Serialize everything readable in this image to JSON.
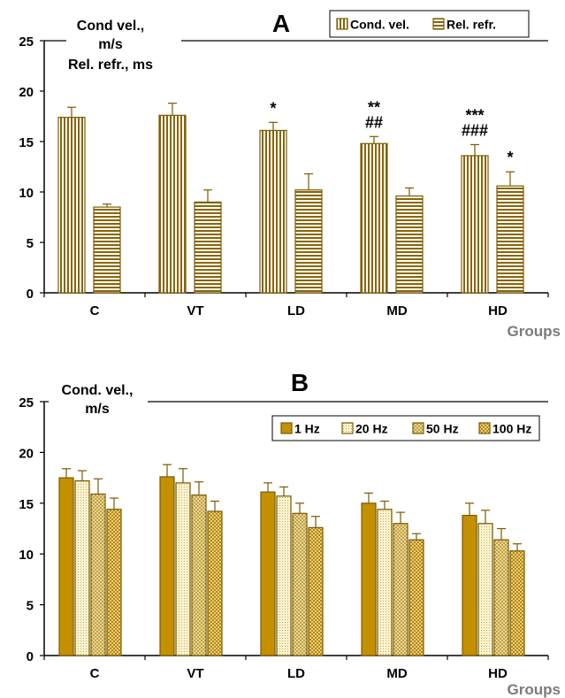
{
  "colors": {
    "outline": "#7a5a00",
    "gold": "#c49000",
    "light": "#f3e6b0",
    "mid": "#d8bd6a",
    "axis": "#000000",
    "groups_label": "#7a7a7a"
  },
  "chart_data": [
    {
      "id": "A",
      "type": "bar",
      "panel_label": "A",
      "title_lines": [
        "Cond vel.,",
        "m/s",
        "Rel. refr., ms"
      ],
      "xlabel": "Groups",
      "ylim": [
        0,
        25
      ],
      "yticks": [
        0,
        5,
        10,
        15,
        20,
        25
      ],
      "categories": [
        "C",
        "VT",
        "LD",
        "MD",
        "HD"
      ],
      "legend": {
        "position": "top-right"
      },
      "series": [
        {
          "name": "Cond. vel.",
          "pattern": "vlines",
          "values": [
            17.4,
            17.6,
            16.1,
            14.8,
            13.6
          ],
          "errors": [
            1.0,
            1.2,
            0.8,
            0.7,
            1.1
          ],
          "annotations": [
            "",
            "",
            "*",
            "**\n##",
            "***\n###"
          ]
        },
        {
          "name": "Rel. refr.",
          "pattern": "hlines",
          "values": [
            8.5,
            9.0,
            10.2,
            9.6,
            10.6
          ],
          "errors": [
            0.3,
            1.2,
            1.6,
            0.8,
            1.4
          ],
          "annotations": [
            "",
            "",
            "",
            "",
            "*"
          ]
        }
      ]
    },
    {
      "id": "B",
      "type": "bar",
      "panel_label": "B",
      "title_lines": [
        "Cond. vel.,",
        "m/s"
      ],
      "xlabel": "Groups",
      "ylim": [
        0,
        25
      ],
      "yticks": [
        0,
        5,
        10,
        15,
        20,
        25
      ],
      "categories": [
        "C",
        "VT",
        "LD",
        "MD",
        "HD"
      ],
      "legend": {
        "position": "top-right"
      },
      "series": [
        {
          "name": "1 Hz",
          "pattern": "solid",
          "values": [
            17.5,
            17.6,
            16.1,
            15.0,
            13.8
          ],
          "errors": [
            0.9,
            1.2,
            0.9,
            1.0,
            1.2
          ]
        },
        {
          "name": "20 Hz",
          "pattern": "dots",
          "values": [
            17.2,
            17.0,
            15.7,
            14.4,
            13.0
          ],
          "errors": [
            1.0,
            1.4,
            0.9,
            0.8,
            1.3
          ]
        },
        {
          "name": "50 Hz",
          "pattern": "crosshatch",
          "values": [
            15.9,
            15.8,
            14.0,
            13.0,
            11.4
          ],
          "errors": [
            1.5,
            1.3,
            1.0,
            1.1,
            1.1
          ]
        },
        {
          "name": "100 Hz",
          "pattern": "checker",
          "values": [
            14.4,
            14.2,
            12.6,
            11.4,
            10.3
          ],
          "errors": [
            1.1,
            1.0,
            1.1,
            0.6,
            0.7
          ]
        }
      ]
    }
  ]
}
